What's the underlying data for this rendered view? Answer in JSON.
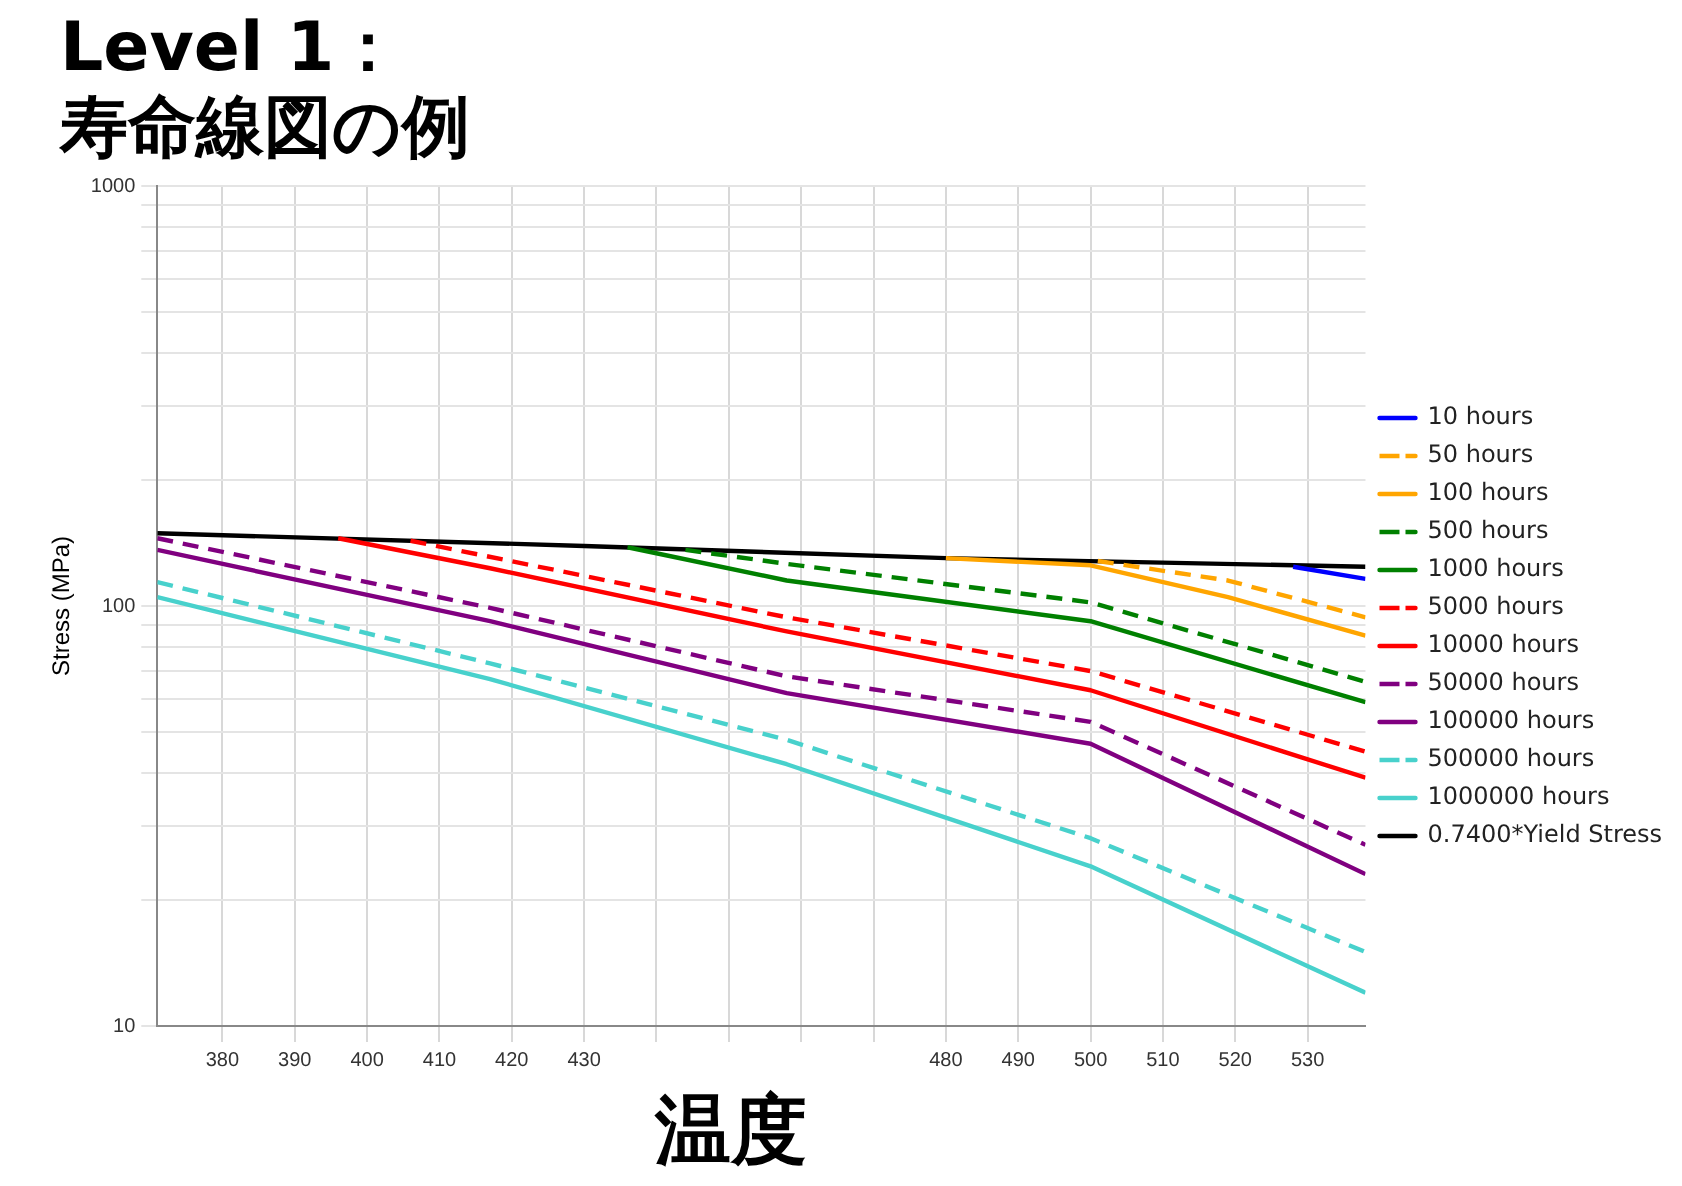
{
  "chart_data": {
    "type": "line",
    "title": "Level 1：",
    "subtitle": "寿命線図の例",
    "xlabel": "温度",
    "ylabel": "Stress (MPa)",
    "log": "y",
    "grid": true,
    "legend": "right",
    "marker": "none",
    "xlim": [
      371,
      538
    ],
    "xticks": [
      380,
      390,
      400,
      410,
      420,
      430,
      {
        "value": 440,
        "label": null
      },
      {
        "value": 450,
        "label": null
      },
      {
        "value": 460,
        "label": null
      },
      {
        "value": 470,
        "label": null
      },
      480,
      490,
      500,
      510,
      520,
      530
    ],
    "ylim": [
      10,
      1000
    ],
    "yticks": [
      10,
      {
        "value": 20,
        "label": null
      },
      {
        "value": 30,
        "label": null
      },
      {
        "value": 40,
        "label": null
      },
      {
        "value": 50,
        "label": null
      },
      {
        "value": 60,
        "label": null
      },
      {
        "value": 70,
        "label": null
      },
      {
        "value": 80,
        "label": null
      },
      {
        "value": 90,
        "label": null
      },
      100,
      {
        "value": 200,
        "label": null
      },
      {
        "value": 300,
        "label": null
      },
      {
        "value": 400,
        "label": null
      },
      {
        "value": 500,
        "label": null
      },
      {
        "value": 600,
        "label": null
      },
      {
        "value": 700,
        "label": null
      },
      {
        "value": 800,
        "label": null
      },
      {
        "value": 900,
        "label": null
      },
      1000
    ],
    "series": [
      {
        "name": "10 hours",
        "color": "#0000ff",
        "line_style": "solid",
        "x": [
          528,
          538
        ],
        "values": [
          124,
          116
        ]
      },
      {
        "name": "50 hours",
        "color": "#ffa500",
        "line_style": "dashed",
        "x": [
          501,
          519,
          538
        ],
        "values": [
          128,
          115,
          94
        ]
      },
      {
        "name": "100 hours",
        "color": "#ffa500",
        "line_style": "solid",
        "x": [
          480,
          500,
          519,
          538
        ],
        "values": [
          130,
          125,
          105,
          85
        ]
      },
      {
        "name": "500 hours",
        "color": "#008000",
        "line_style": "dashed",
        "x": [
          444,
          458,
          500,
          538
        ],
        "values": [
          136,
          126,
          102,
          66
        ]
      },
      {
        "name": "1000 hours",
        "color": "#008000",
        "line_style": "solid",
        "x": [
          436,
          458,
          500,
          538
        ],
        "values": [
          138,
          115,
          92,
          59
        ]
      },
      {
        "name": "5000 hours",
        "color": "#ff0000",
        "line_style": "dashed",
        "x": [
          406,
          431,
          458,
          500,
          538
        ],
        "values": [
          143,
          117,
          94,
          70,
          45
        ]
      },
      {
        "name": "10000 hours",
        "color": "#ff0000",
        "line_style": "solid",
        "x": [
          396,
          417,
          458,
          500,
          538
        ],
        "values": [
          145,
          123,
          87,
          63,
          39
        ]
      },
      {
        "name": "50000 hours",
        "color": "#800080",
        "line_style": "dashed",
        "x": [
          371,
          417,
          458,
          500,
          538
        ],
        "values": [
          145,
          99,
          68,
          53,
          27
        ]
      },
      {
        "name": "100000 hours",
        "color": "#800080",
        "line_style": "solid",
        "x": [
          371,
          417,
          458,
          500,
          538
        ],
        "values": [
          136,
          92,
          62,
          47,
          23
        ]
      },
      {
        "name": "500000 hours",
        "color": "#48d1cc",
        "line_style": "dashed",
        "x": [
          371,
          417,
          458,
          500,
          538
        ],
        "values": [
          114,
          73,
          48,
          28,
          15
        ]
      },
      {
        "name": "1000000 hours",
        "color": "#48d1cc",
        "line_style": "solid",
        "x": [
          371,
          417,
          458,
          500,
          538
        ],
        "values": [
          105,
          67,
          42,
          24,
          12
        ]
      },
      {
        "name": "0.7400*Yield Stress",
        "color": "#000000",
        "line_style": "solid",
        "x": [
          371,
          430,
          480,
          538
        ],
        "values": [
          149,
          139,
          130,
          124
        ]
      }
    ]
  }
}
